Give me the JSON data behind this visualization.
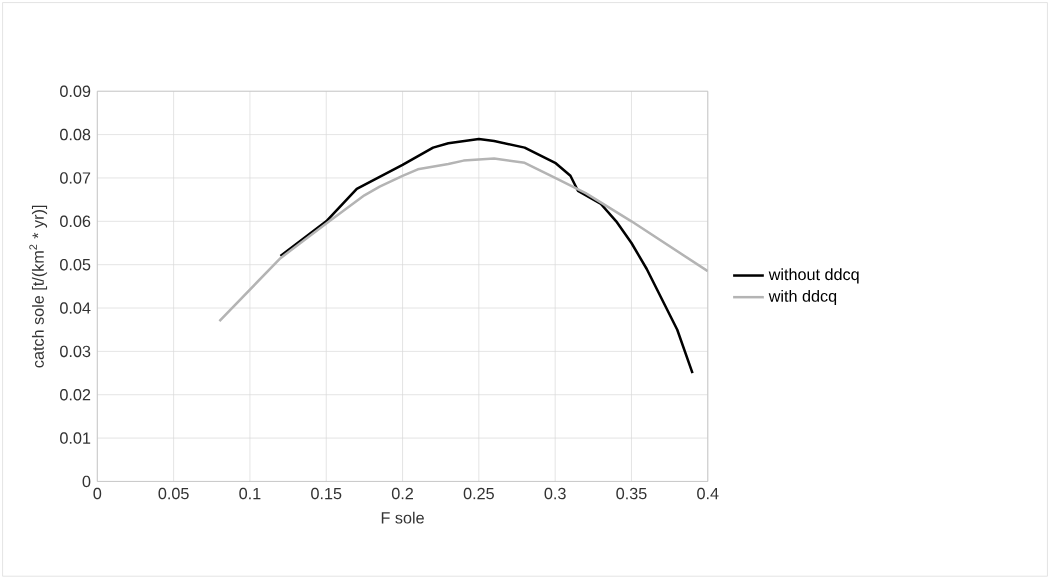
{
  "chart_data": {
    "type": "line",
    "xlabel": "F sole",
    "ylabel": "catch sole  [t/(km$^{2}$ * yr)]",
    "xlim": [
      0,
      0.4
    ],
    "ylim": [
      0,
      0.09
    ],
    "xticks": [
      0,
      0.05,
      0.1,
      0.15,
      0.2,
      0.25,
      0.3,
      0.35,
      0.4
    ],
    "yticks": [
      0,
      0.01,
      0.02,
      0.03,
      0.04,
      0.05,
      0.06,
      0.07,
      0.08,
      0.09
    ],
    "grid": true,
    "legend": "right",
    "marker": "none",
    "line_style": "solid",
    "series": [
      {
        "name": "without ddcq",
        "color": "#000000",
        "x": [
          0.12,
          0.15,
          0.17,
          0.2,
          0.22,
          0.23,
          0.25,
          0.26,
          0.28,
          0.3,
          0.31,
          0.315,
          0.33,
          0.34,
          0.35,
          0.36,
          0.37,
          0.38,
          0.39
        ],
        "values": [
          0.052,
          0.06,
          0.0675,
          0.073,
          0.077,
          0.078,
          0.079,
          0.0785,
          0.077,
          0.0735,
          0.0705,
          0.067,
          0.064,
          0.06,
          0.055,
          0.049,
          0.042,
          0.035,
          0.025
        ]
      },
      {
        "name": "with ddcq",
        "color": "#b4b4b4",
        "x": [
          0.08,
          0.12,
          0.15,
          0.175,
          0.185,
          0.2,
          0.21,
          0.23,
          0.24,
          0.26,
          0.28,
          0.3,
          0.32,
          0.35,
          0.4
        ],
        "values": [
          0.037,
          0.0515,
          0.0595,
          0.066,
          0.068,
          0.0705,
          0.072,
          0.0732,
          0.074,
          0.0745,
          0.0735,
          0.07,
          0.0665,
          0.06,
          0.0485
        ]
      }
    ]
  }
}
